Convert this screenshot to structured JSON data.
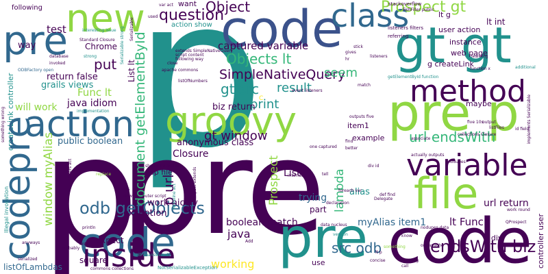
{
  "palette": {
    "purple": "#440154",
    "indigo": "#3b528b",
    "blue": "#31688e",
    "teal": "#21918c",
    "green": "#35b779",
    "lime": "#90d743",
    "yellow": "#fde725"
  },
  "words": [
    {
      "text": "p",
      "color": "teal"
    },
    {
      "text": "pre",
      "color": "purple"
    },
    {
      "text": "p",
      "color": "purple"
    },
    {
      "text": "code",
      "color": "indigo"
    },
    {
      "text": "pre",
      "color": "teal"
    },
    {
      "text": "code",
      "color": "purple"
    },
    {
      "text": "pre p",
      "color": "lime"
    },
    {
      "text": "pre",
      "color": "blue"
    },
    {
      "text": "code",
      "color": "blue"
    },
    {
      "text": "gt gt",
      "color": "teal"
    },
    {
      "text": "class",
      "color": "blue"
    },
    {
      "text": "method",
      "color": "purple"
    },
    {
      "text": "groovy",
      "color": "lime"
    },
    {
      "text": "new",
      "color": "lime"
    },
    {
      "text": "variable",
      "color": "purple"
    },
    {
      "text": "file",
      "color": "lime"
    },
    {
      "text": "action",
      "color": "blue"
    },
    {
      "text": "inside",
      "color": "purple"
    },
    {
      "text": "Prospect gt",
      "color": "lime"
    },
    {
      "text": "question",
      "color": "purple"
    },
    {
      "text": "Object",
      "color": "purple"
    },
    {
      "text": "window myAlias",
      "color": "lime"
    },
    {
      "text": "odb getObjects",
      "color": "blue"
    },
    {
      "text": "endsWith biz",
      "color": "purple"
    },
    {
      "text": "url endsWith",
      "color": "green"
    },
    {
      "text": "document getElementById",
      "color": "green"
    },
    {
      "text": "Objects lt",
      "color": "green"
    },
    {
      "text": "SimpleNativeQuery",
      "color": "purple"
    },
    {
      "text": "gt src",
      "color": "teal"
    },
    {
      "text": "result",
      "color": "teal"
    },
    {
      "text": "print",
      "color": "teal"
    },
    {
      "text": "seem",
      "color": "green"
    },
    {
      "text": "captured variable",
      "color": "purple"
    },
    {
      "text": "test",
      "color": "purple"
    },
    {
      "text": "put",
      "color": "purple"
    },
    {
      "text": "p url",
      "color": "purple"
    },
    {
      "text": "Prospect",
      "color": "lime"
    },
    {
      "text": "lambda",
      "color": "green"
    },
    {
      "text": "gt window",
      "color": "purple"
    },
    {
      "text": "src odb",
      "color": "blue"
    },
    {
      "text": "working",
      "color": "yellow"
    },
    {
      "text": "java",
      "color": "purple"
    },
    {
      "text": "boolean match",
      "color": "purple"
    },
    {
      "text": "myAlias item1",
      "color": "blue"
    },
    {
      "text": "lt Func",
      "color": "purple"
    },
    {
      "text": "url return",
      "color": "purple"
    },
    {
      "text": "Closure",
      "color": "purple"
    },
    {
      "text": "List",
      "color": "purple"
    },
    {
      "text": "trying",
      "color": "blue"
    },
    {
      "text": "alias",
      "color": "teal"
    },
    {
      "text": "part",
      "color": "purple"
    },
    {
      "text": "public boolean",
      "color": "blue"
    },
    {
      "text": "exception",
      "color": "purple"
    },
    {
      "text": "work nicely",
      "color": "purple"
    },
    {
      "text": "anonymous class",
      "color": "purple"
    },
    {
      "text": "biz return",
      "color": "purple"
    },
    {
      "text": "Func lt",
      "color": "lime"
    },
    {
      "text": "java idiom",
      "color": "purple"
    },
    {
      "text": "will work",
      "color": "lime"
    },
    {
      "text": "return false",
      "color": "purple"
    },
    {
      "text": "grails views",
      "color": "teal"
    },
    {
      "text": "Chrome",
      "color": "purple"
    },
    {
      "text": "way",
      "color": "purple"
    },
    {
      "text": "following",
      "color": "purple"
    },
    {
      "text": "createLink controller",
      "color": "teal"
    },
    {
      "text": "codepre",
      "color": "blue"
    },
    {
      "text": "listOfLambdas",
      "color": "blue"
    },
    {
      "text": "square",
      "color": "purple"
    },
    {
      "text": "expect",
      "color": "purple"
    },
    {
      "text": "gsp file",
      "color": "purple"
    },
    {
      "text": "user action",
      "color": "purple"
    },
    {
      "text": "lt int",
      "color": "purple"
    },
    {
      "text": "lt g",
      "color": "purple"
    },
    {
      "text": "instance",
      "color": "purple"
    },
    {
      "text": "web page",
      "color": "purple"
    },
    {
      "text": "g createLink",
      "color": "purple"
    },
    {
      "text": "maybe",
      "color": "purple"
    },
    {
      "text": "item1",
      "color": "purple"
    },
    {
      "text": "example",
      "color": "purple"
    },
    {
      "text": "lt div",
      "color": "purple"
    },
    {
      "text": "use",
      "color": "purple"
    },
    {
      "text": "controller user",
      "color": "purple"
    },
    {
      "text": "action show",
      "color": "teal"
    },
    {
      "text": "want",
      "color": "purple"
    },
    {
      "text": "List lt",
      "color": "purple"
    },
    {
      "text": "stackoverflow",
      "color": "purple"
    },
    {
      "text": "referring",
      "color": "purple"
    },
    {
      "text": "listeners filters",
      "color": "purple"
    },
    {
      "text": "used",
      "color": "purple"
    },
    {
      "text": "var act",
      "color": "purple"
    },
    {
      "text": "database",
      "color": "purple"
    },
    {
      "text": "invoked",
      "color": "purple"
    },
    {
      "text": "strong",
      "color": "teal"
    },
    {
      "text": "interesting issue",
      "color": "teal"
    },
    {
      "text": "Standard Closure",
      "color": "purple"
    },
    {
      "text": "ODBFactory open",
      "color": "blue"
    },
    {
      "text": "implementation",
      "color": "teal"
    },
    {
      "text": "Serializable strong",
      "color": "teal"
    },
    {
      "text": "apache commons",
      "color": "purple"
    },
    {
      "text": "listOfNumbers",
      "color": "purple"
    },
    {
      "text": "close",
      "color": "purple"
    },
    {
      "text": "println",
      "color": "purple"
    },
    {
      "text": "replace",
      "color": "lime"
    },
    {
      "text": "Thanks",
      "color": "purple"
    },
    {
      "text": "something wrong",
      "color": "purple"
    },
    {
      "text": "Illegal invocation",
      "color": "teal"
    },
    {
      "text": "filters act",
      "color": "purple"
    },
    {
      "text": "C",
      "color": "yellow"
    },
    {
      "text": "anyways",
      "color": "purple"
    },
    {
      "text": "serialized",
      "color": "purple"
    },
    {
      "text": "probably",
      "color": "purple"
    },
    {
      "text": "href",
      "color": "purple"
    },
    {
      "text": "commons collections",
      "color": "purple"
    },
    {
      "text": "NotSerializableException",
      "color": "teal"
    },
    {
      "text": "still unanswered",
      "color": "teal"
    },
    {
      "text": "interface",
      "color": "purple"
    },
    {
      "text": "tell",
      "color": "purple"
    },
    {
      "text": "div id",
      "color": "purple"
    },
    {
      "text": "data nucleus",
      "color": "purple"
    },
    {
      "text": "org apache",
      "color": "purple"
    },
    {
      "text": "passing",
      "color": "purple"
    },
    {
      "text": "something",
      "color": "lime"
    },
    {
      "text": "call",
      "color": "purple"
    },
    {
      "text": "Add",
      "color": "purple"
    },
    {
      "text": "outputs five",
      "color": "purple"
    },
    {
      "text": "find",
      "color": "purple"
    },
    {
      "text": "better",
      "color": "purple"
    },
    {
      "text": "one captured",
      "color": "purple"
    },
    {
      "text": "associate",
      "color": "purple"
    },
    {
      "text": "collections Closure",
      "color": "purple"
    },
    {
      "text": "actually outputs",
      "color": "purple"
    },
    {
      "text": "five 10s",
      "color": "purple"
    },
    {
      "text": "listFiles",
      "color": "purple"
    },
    {
      "text": "output",
      "color": "purple"
    },
    {
      "text": "id field",
      "color": "purple"
    },
    {
      "text": "implements Serializable",
      "color": "purple"
    },
    {
      "text": "additional",
      "color": "teal"
    },
    {
      "text": "function x",
      "color": "purple"
    },
    {
      "text": "listeners",
      "color": "purple"
    },
    {
      "text": "learning",
      "color": "purple"
    },
    {
      "text": "gives",
      "color": "purple"
    },
    {
      "text": "stick",
      "color": "purple"
    },
    {
      "text": "hr",
      "color": "purple"
    },
    {
      "text": "match",
      "color": "purple"
    },
    {
      "text": "getElementById function",
      "color": "teal"
    },
    {
      "text": "event listeners",
      "color": "purple"
    },
    {
      "text": "foreach var",
      "color": "purple"
    },
    {
      "text": "declaration",
      "color": "purple"
    },
    {
      "text": "Delegate",
      "color": "purple"
    },
    {
      "text": "def find",
      "color": "purple"
    },
    {
      "text": "work round",
      "color": "purple"
    },
    {
      "text": "QProspect",
      "color": "purple"
    },
    {
      "text": "nodupes data",
      "color": "purple"
    },
    {
      "text": "concise",
      "color": "purple"
    },
    {
      "text": "lt p",
      "color": "purple"
    },
    {
      "text": "know",
      "color": "purple"
    },
    {
      "text": "Now",
      "color": "purple"
    },
    {
      "text": "Writeline act",
      "color": "teal"
    },
    {
      "text": "QProspect extends",
      "color": "purple"
    },
    {
      "text": "should be added",
      "color": "purple"
    },
    {
      "text": "outer script",
      "color": "purple"
    },
    {
      "text": "FishFiller public",
      "color": "purple"
    },
    {
      "text": "script content",
      "color": "purple"
    },
    {
      "text": "extends SimpleNativeQuery",
      "color": "purple"
    },
    {
      "text": "following way",
      "color": "purple"
    },
    {
      "text": "Serializable",
      "color": "purple"
    },
    {
      "text": "nodupes",
      "color": "purple"
    },
    {
      "text": "version",
      "color": "teal"
    }
  ]
}
